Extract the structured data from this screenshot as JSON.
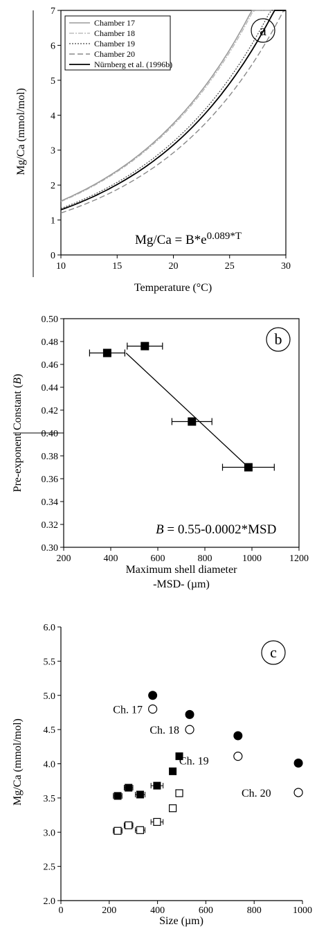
{
  "chart_data": [
    {
      "panel": "a",
      "type": "line",
      "xlabel": "Temperature (°C)",
      "ylabel": "Mg/Ca (mmol/mol)",
      "xlim": [
        10,
        30
      ],
      "ylim": [
        0,
        7
      ],
      "xticks": [
        "10",
        "15",
        "20",
        "25",
        "30"
      ],
      "yticks": [
        "0",
        "1",
        "2",
        "3",
        "4",
        "5",
        "6",
        "7"
      ],
      "equation": "Mg/Ca = B*e",
      "equation_exp": "0.089*T",
      "legend": "top-left",
      "series": [
        {
          "name": "Chamber 17",
          "B": 0.476,
          "color": "#9a9a9a",
          "dash": "",
          "width": 1.6
        },
        {
          "name": "Chamber 18",
          "B": 0.47,
          "color": "#b0b0b0",
          "dash": "7,2,2,2",
          "width": 1.2
        },
        {
          "name": "Chamber 19",
          "B": 0.41,
          "color": "#444444",
          "dash": "2,2",
          "width": 1.2
        },
        {
          "name": "Chamber 20",
          "B": 0.37,
          "color": "#888888",
          "dash": "8,4",
          "width": 1.4
        },
        {
          "name": "Nürnberg et al. (1996b)",
          "B": 0.398,
          "color": "#000000",
          "dash": "",
          "width": 1.8
        }
      ]
    },
    {
      "panel": "b",
      "type": "scatter",
      "xlabel": "Maximum shell diameter",
      "xlabel2": "-MSD- (µm)",
      "ylabel": "Pre-exponent Constant (B)",
      "xlim": [
        200,
        1200
      ],
      "ylim": [
        0.3,
        0.5
      ],
      "xticks": [
        "200",
        "400",
        "600",
        "800",
        "1000",
        "1200"
      ],
      "yticks": [
        "0.30",
        "0.32",
        "0.34",
        "0.36",
        "0.38",
        "0.40",
        "0.42",
        "0.44",
        "0.46",
        "0.48",
        "0.50"
      ],
      "equation_var": "B",
      "equation_rest": " = 0.55-0.0002*MSD",
      "points": [
        {
          "x": 385,
          "y": 0.47,
          "xerr": 75
        },
        {
          "x": 545,
          "y": 0.476,
          "xerr": 75
        },
        {
          "x": 745,
          "y": 0.41,
          "xerr": 85
        },
        {
          "x": 985,
          "y": 0.37,
          "xerr": 110
        }
      ],
      "fit": {
        "x": [
          465,
          985
        ],
        "y": [
          0.47,
          0.37
        ]
      }
    },
    {
      "panel": "c",
      "type": "scatter",
      "xlabel": "Size (µm)",
      "ylabel": "Mg/Ca (mmol/mol)",
      "xlim": [
        0,
        1000
      ],
      "ylim": [
        2.0,
        6.0
      ],
      "xticks": [
        "0",
        "200",
        "400",
        "600",
        "800",
        "1000"
      ],
      "yticks": [
        "2.0",
        "2.5",
        "3.0",
        "3.5",
        "4.0",
        "4.5",
        "5.0",
        "5.5",
        "6.0"
      ],
      "series": [
        {
          "marker": "filled-circle",
          "points": [
            [
              380,
              5.0
            ],
            [
              533,
              4.72
            ],
            [
              733,
              4.41
            ],
            [
              983,
              4.01
            ]
          ]
        },
        {
          "marker": "open-circle",
          "points": [
            [
              380,
              4.8
            ],
            [
              533,
              4.5
            ],
            [
              733,
              4.11
            ],
            [
              983,
              3.58
            ]
          ]
        },
        {
          "marker": "filled-square",
          "points": [
            [
              235,
              3.53,
              18
            ],
            [
              280,
              3.65,
              18
            ],
            [
              328,
              3.55,
              20
            ],
            [
              398,
              3.68,
              25
            ],
            [
              463,
              3.89,
              10
            ],
            [
              490,
              4.11,
              0
            ]
          ]
        },
        {
          "marker": "open-square",
          "points": [
            [
              235,
              3.02,
              18
            ],
            [
              280,
              3.1,
              18
            ],
            [
              328,
              3.03,
              20
            ],
            [
              398,
              3.15,
              25
            ],
            [
              463,
              3.35,
              0
            ],
            [
              490,
              3.57,
              0
            ]
          ]
        }
      ],
      "annotations": [
        {
          "text": "Ch. 17",
          "x": 338,
          "y": 4.8
        },
        {
          "text": "Ch. 18",
          "x": 490,
          "y": 4.5
        },
        {
          "text": "Ch. 19",
          "x": 612,
          "y": 4.05
        },
        {
          "text": "Ch. 20",
          "x": 870,
          "y": 3.58
        }
      ]
    }
  ]
}
